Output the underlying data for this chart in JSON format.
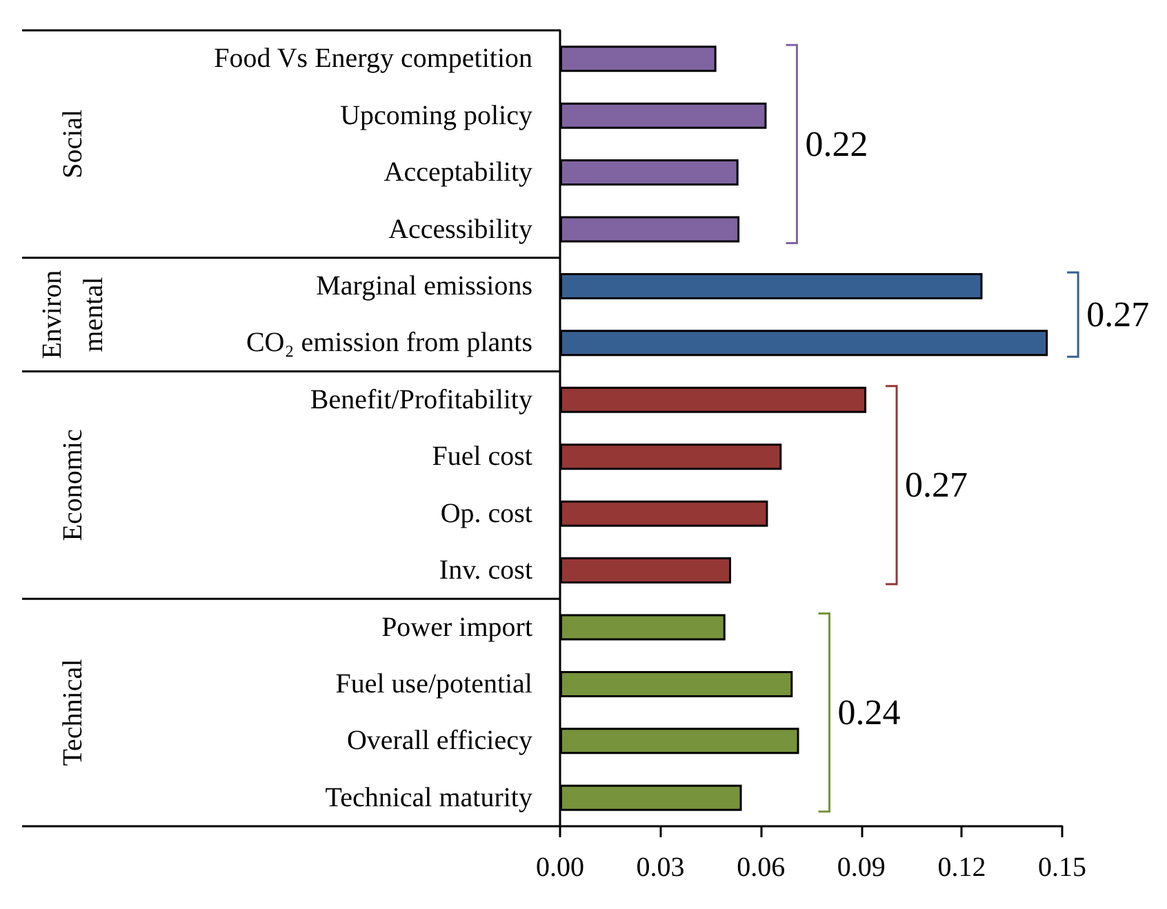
{
  "chart_data": {
    "type": "bar",
    "orientation": "horizontal",
    "categories": [
      "Food Vs Energy competition",
      "Upcoming policy",
      "Acceptability",
      "Accessibility",
      "Marginal emissions",
      "CO₂ emission from plants",
      "Benefit/Profitability",
      "Fuel cost",
      "Op. cost",
      "Inv. cost",
      "Power import",
      "Fuel use/potential",
      "Overall efficiecy",
      "Technical maturity"
    ],
    "series": [
      {
        "color": "#8064a2",
        "values": [
          0.0467,
          0.0617,
          0.0533,
          0.0536,
          null,
          null,
          null,
          null,
          null,
          null,
          null,
          null,
          null,
          null
        ]
      },
      {
        "color": "#376092",
        "values": [
          null,
          null,
          null,
          null,
          0.1262,
          0.1457,
          null,
          null,
          null,
          null,
          null,
          null,
          null,
          null
        ]
      },
      {
        "color": "#953735",
        "values": [
          null,
          null,
          null,
          null,
          null,
          null,
          0.0915,
          0.0662,
          0.0621,
          0.0511,
          null,
          null,
          null,
          null
        ]
      },
      {
        "color": "#77933c",
        "values": [
          null,
          null,
          null,
          null,
          null,
          null,
          null,
          null,
          null,
          null,
          0.0494,
          0.0695,
          0.0714,
          0.0543
        ]
      }
    ],
    "annotations": [
      "Social",
      "Environ mental",
      "Economic",
      "Technical",
      "0.22",
      "0.27",
      "0.27",
      "0.24"
    ],
    "xlim": [
      0,
      0.15
    ],
    "xticks": [
      {
        "value": 0,
        "label": "0.00"
      },
      {
        "value": 0.03,
        "label": "0.03"
      },
      {
        "value": 0.06,
        "label": "0.06"
      },
      {
        "value": 0.09,
        "label": "0.09"
      },
      {
        "value": 0.12,
        "label": "0.12"
      },
      {
        "value": 0.15,
        "label": "0.15"
      }
    ],
    "data_labels": false
  }
}
